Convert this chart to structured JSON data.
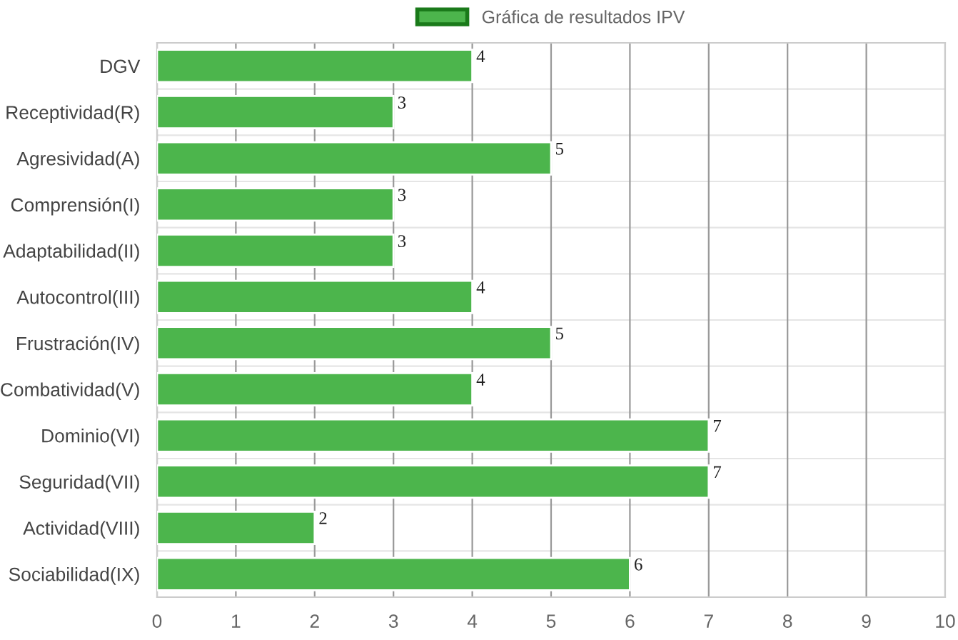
{
  "chart_data": {
    "type": "bar",
    "orientation": "horizontal",
    "categories": [
      "DGV",
      "Receptividad(R)",
      "Agresividad(A)",
      "Comprensión(I)",
      "Adaptabilidad(II)",
      "Autocontrol(III)",
      "Frustración(IV)",
      "Combatividad(V)",
      "Dominio(VI)",
      "Seguridad(VII)",
      "Actividad(VIII)",
      "Sociabilidad(IX)"
    ],
    "series": [
      {
        "name": "Gráfica de resultados IPV",
        "color": "#4cb54c",
        "values": [
          4,
          3,
          5,
          3,
          3,
          4,
          5,
          4,
          7,
          7,
          2,
          6
        ]
      }
    ],
    "xlim": [
      0,
      10
    ],
    "xticks": [
      0,
      1,
      2,
      3,
      4,
      5,
      6,
      7,
      8,
      9,
      10
    ],
    "grid": true,
    "legend": "top",
    "data_labels": true
  }
}
